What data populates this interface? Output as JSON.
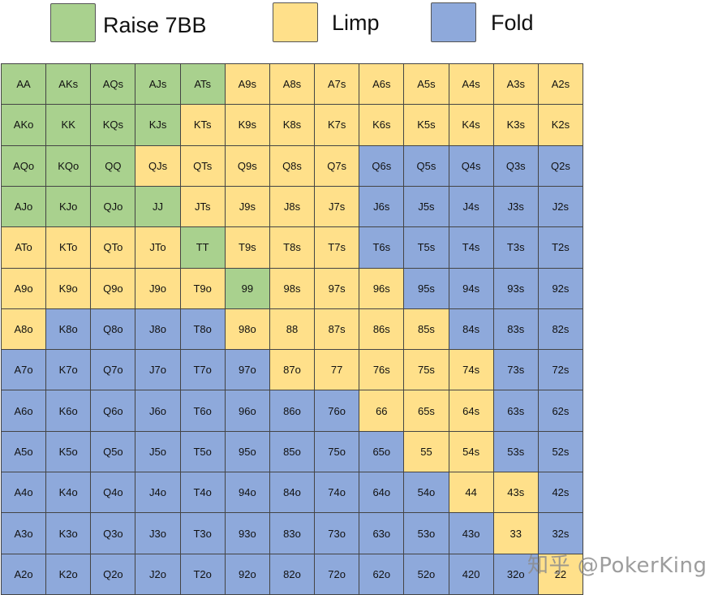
{
  "legend": {
    "raise": {
      "label": "Raise 7BB",
      "color": "#a9d18e"
    },
    "limp": {
      "label": "Limp",
      "color": "#ffe08a"
    },
    "fold": {
      "label": "Fold",
      "color": "#8ea9db"
    }
  },
  "chart_data": {
    "type": "table",
    "title": "",
    "rows": [
      [
        "AA",
        "AKs",
        "AQs",
        "AJs",
        "ATs",
        "A9s",
        "A8s",
        "A7s",
        "A6s",
        "A5s",
        "A4s",
        "A3s",
        "A2s"
      ],
      [
        "AKo",
        "KK",
        "KQs",
        "KJs",
        "KTs",
        "K9s",
        "K8s",
        "K7s",
        "K6s",
        "K5s",
        "K4s",
        "K3s",
        "K2s"
      ],
      [
        "AQo",
        "KQo",
        "QQ",
        "QJs",
        "QTs",
        "Q9s",
        "Q8s",
        "Q7s",
        "Q6s",
        "Q5s",
        "Q4s",
        "Q3s",
        "Q2s"
      ],
      [
        "AJo",
        "KJo",
        "QJo",
        "JJ",
        "JTs",
        "J9s",
        "J8s",
        "J7s",
        "J6s",
        "J5s",
        "J4s",
        "J3s",
        "J2s"
      ],
      [
        "ATo",
        "KTo",
        "QTo",
        "JTo",
        "TT",
        "T9s",
        "T8s",
        "T7s",
        "T6s",
        "T5s",
        "T4s",
        "T3s",
        "T2s"
      ],
      [
        "A9o",
        "K9o",
        "Q9o",
        "J9o",
        "T9o",
        "99",
        "98s",
        "97s",
        "96s",
        "95s",
        "94s",
        "93s",
        "92s"
      ],
      [
        "A8o",
        "K8o",
        "Q8o",
        "J8o",
        "T8o",
        "98o",
        "88",
        "87s",
        "86s",
        "85s",
        "84s",
        "83s",
        "82s"
      ],
      [
        "A7o",
        "K7o",
        "Q7o",
        "J7o",
        "T7o",
        "97o",
        "87o",
        "77",
        "76s",
        "75s",
        "74s",
        "73s",
        "72s"
      ],
      [
        "A6o",
        "K6o",
        "Q6o",
        "J6o",
        "T6o",
        "96o",
        "86o",
        "76o",
        "66",
        "65s",
        "64s",
        "63s",
        "62s"
      ],
      [
        "A5o",
        "K5o",
        "Q5o",
        "J5o",
        "T5o",
        "95o",
        "85o",
        "75o",
        "65o",
        "55",
        "54s",
        "53s",
        "52s"
      ],
      [
        "A4o",
        "K4o",
        "Q4o",
        "J4o",
        "T4o",
        "94o",
        "84o",
        "74o",
        "64o",
        "54o",
        "44",
        "43s",
        "42s"
      ],
      [
        "A3o",
        "K3o",
        "Q3o",
        "J3o",
        "T3o",
        "93o",
        "83o",
        "73o",
        "63o",
        "53o",
        "43o",
        "33",
        "32s"
      ],
      [
        "A2o",
        "K2o",
        "Q2o",
        "J2o",
        "T2o",
        "92o",
        "82o",
        "72o",
        "62o",
        "52o",
        "420",
        "32o",
        "22"
      ]
    ],
    "actions": [
      [
        "R",
        "R",
        "R",
        "R",
        "R",
        "L",
        "L",
        "L",
        "L",
        "L",
        "L",
        "L",
        "L"
      ],
      [
        "R",
        "R",
        "R",
        "R",
        "L",
        "L",
        "L",
        "L",
        "L",
        "L",
        "L",
        "L",
        "L"
      ],
      [
        "R",
        "R",
        "R",
        "L",
        "L",
        "L",
        "L",
        "L",
        "F",
        "F",
        "F",
        "F",
        "F"
      ],
      [
        "R",
        "R",
        "R",
        "R",
        "L",
        "L",
        "L",
        "L",
        "F",
        "F",
        "F",
        "F",
        "F"
      ],
      [
        "L",
        "L",
        "L",
        "L",
        "R",
        "L",
        "L",
        "L",
        "F",
        "F",
        "F",
        "F",
        "F"
      ],
      [
        "L",
        "L",
        "L",
        "L",
        "L",
        "R",
        "L",
        "L",
        "L",
        "F",
        "F",
        "F",
        "F"
      ],
      [
        "L",
        "F",
        "F",
        "F",
        "F",
        "L",
        "L",
        "L",
        "L",
        "L",
        "F",
        "F",
        "F"
      ],
      [
        "F",
        "F",
        "F",
        "F",
        "F",
        "F",
        "L",
        "L",
        "L",
        "L",
        "L",
        "F",
        "F"
      ],
      [
        "F",
        "F",
        "F",
        "F",
        "F",
        "F",
        "F",
        "F",
        "L",
        "L",
        "L",
        "F",
        "F"
      ],
      [
        "F",
        "F",
        "F",
        "F",
        "F",
        "F",
        "F",
        "F",
        "F",
        "L",
        "L",
        "F",
        "F"
      ],
      [
        "F",
        "F",
        "F",
        "F",
        "F",
        "F",
        "F",
        "F",
        "F",
        "F",
        "L",
        "L",
        "F"
      ],
      [
        "F",
        "F",
        "F",
        "F",
        "F",
        "F",
        "F",
        "F",
        "F",
        "F",
        "F",
        "L",
        "F"
      ],
      [
        "F",
        "F",
        "F",
        "F",
        "F",
        "F",
        "F",
        "F",
        "F",
        "F",
        "F",
        "F",
        "L"
      ]
    ],
    "action_key": {
      "R": "raise",
      "L": "limp",
      "F": "fold"
    }
  },
  "watermark": "知乎 @PokerKing"
}
